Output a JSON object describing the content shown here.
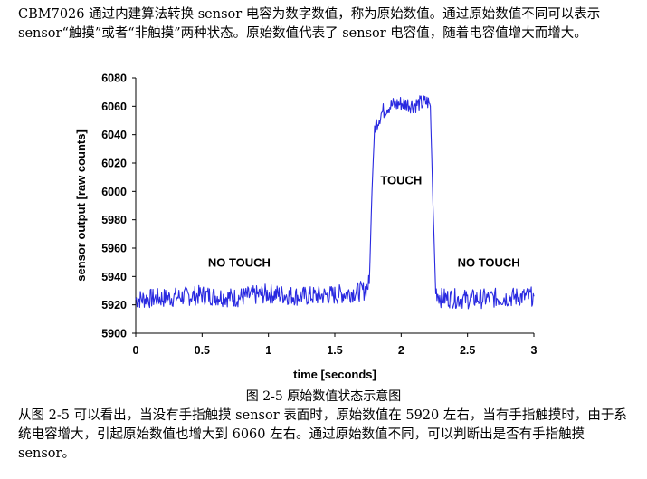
{
  "intro_text": "CBM7026 通过内建算法转换 sensor 电容为数字数值，称为原始数值。通过原始数值不同可以表示 sensor“触摸”或者“非触摸”两种状态。原始数值代表了 sensor 电容值，随着电容值增大而增大。",
  "figure_caption": "图 2-5  原始数值状态示意图",
  "conclusion_text": "从图 2-5 可以看出，当没有手指触摸 sensor 表面时，原始数值在 5920 左右，当有手指触摸时，由于系统电容增大，引起原始数值也增大到 6060 左右。通过原始数值不同，可以判断出是否有手指触摸 sensor。",
  "colors": {
    "series": "#2929e0",
    "axis": "#000000"
  },
  "chart_data": {
    "type": "line",
    "xlabel": "time [seconds]",
    "ylabel": "sensor output [raw counts]",
    "xlim": [
      0,
      3
    ],
    "ylim": [
      5900,
      6080
    ],
    "x_ticks": [
      0,
      0.5,
      1,
      1.5,
      2,
      2.5,
      3
    ],
    "x_tick_labels": [
      "0",
      "0.5",
      "1",
      "1.5",
      "2",
      "2.5",
      "3"
    ],
    "y_ticks": [
      5900,
      5920,
      5940,
      5960,
      5980,
      6000,
      6020,
      6040,
      6060,
      6080
    ],
    "y_tick_labels": [
      "5900",
      "5920",
      "5940",
      "5960",
      "5980",
      "6000",
      "6020",
      "6040",
      "6060",
      "6080"
    ],
    "grid": false,
    "annotations": [
      {
        "text": "NO TOUCH",
        "x": 0.78,
        "y": 5947
      },
      {
        "text": "TOUCH",
        "x": 2.0,
        "y": 6005
      },
      {
        "text": "NO TOUCH",
        "x": 2.66,
        "y": 5947
      }
    ],
    "series": [
      {
        "x": [
          0,
          0.25,
          0.5,
          0.75,
          1.0,
          1.25,
          1.5,
          1.72,
          1.76,
          1.78,
          1.8,
          1.85,
          1.9,
          2.0,
          2.1,
          2.2,
          2.22,
          2.24,
          2.26,
          2.3,
          2.5,
          2.75,
          3.0
        ],
        "y": [
          5924,
          5925,
          5927,
          5925,
          5928,
          5926,
          5927,
          5930,
          5935,
          6000,
          6045,
          6055,
          6060,
          6062,
          6061,
          6063,
          6060,
          5990,
          5930,
          5925,
          5924,
          5925,
          5926
        ]
      }
    ]
  }
}
